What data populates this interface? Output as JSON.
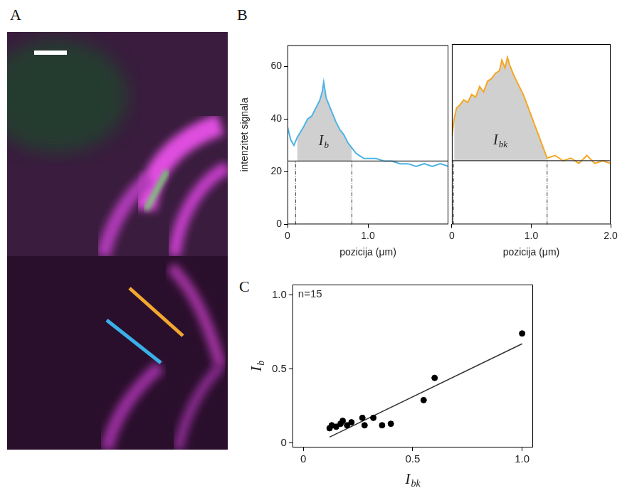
{
  "image": {
    "panel": "A",
    "type": "image"
  },
  "chart_data": [
    {
      "panel": "B",
      "type": "line",
      "ylabel": "intenzitet signala",
      "xlabel": "pozicija (μm)",
      "xlim": [
        0,
        2.0
      ],
      "xticks": [
        0,
        {
          "value": 1,
          "label": "1.0"
        }
      ],
      "ylim": [
        0,
        68
      ],
      "yticks": [
        0,
        20,
        40,
        60
      ],
      "grid": false,
      "x": [
        0,
        0.04,
        0.08,
        0.12,
        0.16,
        0.2,
        0.25,
        0.3,
        0.35,
        0.4,
        0.43,
        0.45,
        0.48,
        0.52,
        0.56,
        0.6,
        0.65,
        0.7,
        0.75,
        0.8,
        0.85,
        0.9,
        0.95,
        1.0,
        1.1,
        1.2,
        1.3,
        1.4,
        1.5,
        1.6,
        1.7,
        1.8,
        1.9,
        2.0
      ],
      "values": [
        37,
        32,
        30,
        33,
        35,
        37,
        40,
        41,
        44,
        47,
        50,
        54,
        48,
        45,
        42,
        39,
        36,
        34,
        31,
        29,
        27,
        26,
        25,
        25,
        25,
        24,
        24,
        23,
        23,
        22,
        23,
        22,
        23,
        22
      ],
      "color": "#4db3e6",
      "baseline": 24,
      "integration_range": [
        0.1,
        0.8
      ],
      "area_label": {
        "main": "I",
        "sub": "b"
      }
    },
    {
      "panel": "B",
      "type": "line",
      "xlabel": "pozicija (μm)",
      "tick_labels": "x",
      "xlim": [
        0,
        2.0
      ],
      "xticks": [
        0,
        {
          "value": 1,
          "label": "1.0"
        },
        {
          "value": 2,
          "label": "2.0"
        }
      ],
      "ylim": [
        0,
        68
      ],
      "grid": false,
      "x": [
        0,
        0.03,
        0.06,
        0.1,
        0.15,
        0.2,
        0.25,
        0.3,
        0.35,
        0.4,
        0.45,
        0.5,
        0.55,
        0.6,
        0.63,
        0.67,
        0.7,
        0.73,
        0.77,
        0.8,
        0.85,
        0.9,
        0.95,
        1.0,
        1.05,
        1.1,
        1.15,
        1.2,
        1.3,
        1.4,
        1.5,
        1.6,
        1.7,
        1.8,
        1.9,
        2.0
      ],
      "values": [
        33,
        40,
        44,
        45,
        47,
        46,
        49,
        48,
        52,
        50,
        54,
        55,
        57,
        58,
        62,
        59,
        63,
        60,
        57,
        55,
        52,
        49,
        45,
        41,
        37,
        33,
        29,
        25,
        26,
        24,
        25,
        23,
        26,
        23,
        24,
        23
      ],
      "color": "#f5a623",
      "baseline": 24,
      "integration_range": [
        0.02,
        1.2
      ],
      "area_label": {
        "main": "I",
        "sub": "bk"
      }
    },
    {
      "panel": "C",
      "type": "scatter",
      "annotation": "n=15",
      "xlabel": {
        "main": "I",
        "sub": "bk"
      },
      "ylabel": {
        "main": "I",
        "sub": "b"
      },
      "xlim": [
        -0.05,
        1.05
      ],
      "xticks": [
        0,
        0.5,
        {
          "value": 1,
          "label": "1.0"
        }
      ],
      "ylim": [
        -0.03,
        1.07
      ],
      "yticks": [
        0,
        0.5,
        {
          "value": 1,
          "label": "1.0"
        }
      ],
      "grid": false,
      "x": [
        0.12,
        0.13,
        0.15,
        0.17,
        0.18,
        0.2,
        0.22,
        0.27,
        0.28,
        0.32,
        0.36,
        0.4,
        0.55,
        0.6,
        1.0
      ],
      "values": [
        0.1,
        0.12,
        0.11,
        0.13,
        0.15,
        0.12,
        0.14,
        0.17,
        0.12,
        0.17,
        0.12,
        0.13,
        0.29,
        0.44,
        0.74
      ],
      "color": "#000000",
      "marker": "circle",
      "fit": {
        "x": [
          0.12,
          1.0
        ],
        "values": [
          0.04,
          0.67
        ]
      }
    }
  ]
}
